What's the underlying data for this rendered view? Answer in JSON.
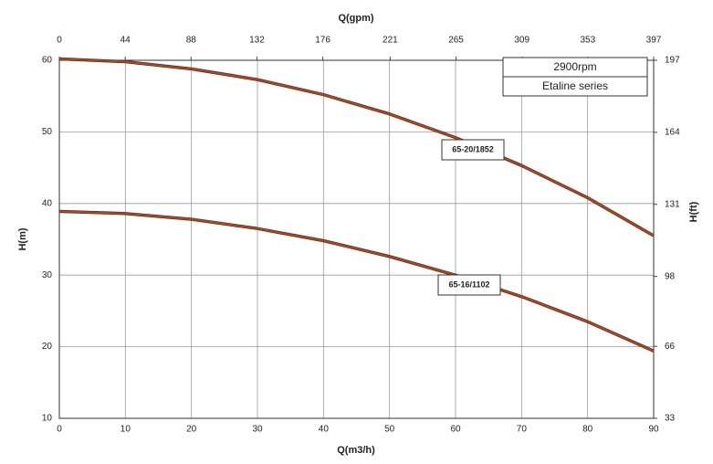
{
  "chart_data": {
    "type": "line",
    "x_title": "Q(m3/h)",
    "x2_title": "Q(gpm)",
    "y_title": "H(m)",
    "y2_title": "H(ft)",
    "x": [
      0,
      10,
      20,
      30,
      40,
      50,
      60,
      70,
      80,
      90
    ],
    "series": [
      {
        "name": "65-20/1852",
        "color": "#a84a28",
        "values": [
          60.2,
          59.8,
          58.8,
          57.3,
          55.2,
          52.5,
          49.2,
          45.3,
          40.8,
          35.5
        ]
      },
      {
        "name": "65-16/1102",
        "color": "#a84a28",
        "values": [
          38.9,
          38.6,
          37.8,
          36.5,
          34.8,
          32.6,
          30.0,
          27.0,
          23.5,
          19.4
        ]
      }
    ],
    "xlim": [
      0,
      90
    ],
    "xticks": [
      0,
      10,
      20,
      30,
      40,
      50,
      60,
      70,
      80,
      90
    ],
    "x2lim": [
      0,
      397
    ],
    "x2ticks": [
      0,
      44,
      88,
      132,
      176,
      221,
      265,
      309,
      353,
      397
    ],
    "ylim": [
      10,
      60
    ],
    "yticks": [
      10,
      20,
      30,
      40,
      50,
      60
    ],
    "y2lim": [
      33,
      197
    ],
    "y2ticks": [
      33,
      66,
      98,
      131,
      164,
      197
    ],
    "grid": true,
    "annotations": [
      "2900rpm",
      "Etaline series"
    ]
  }
}
